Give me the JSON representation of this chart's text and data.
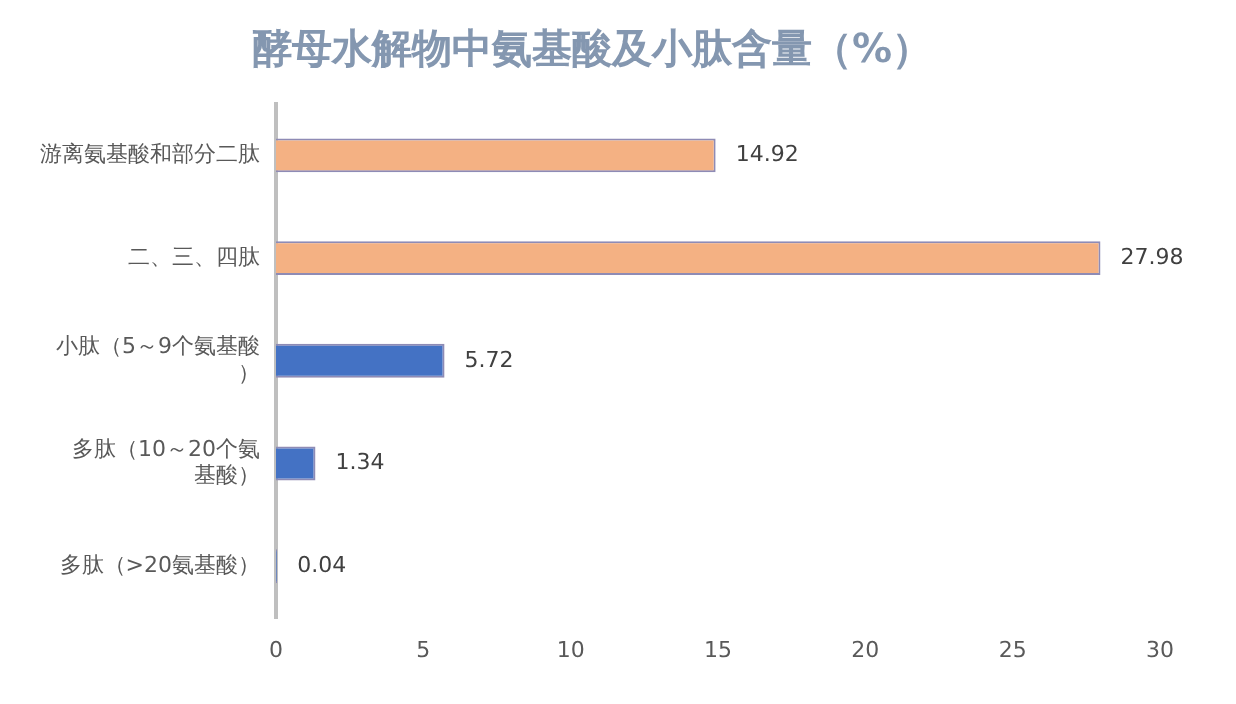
{
  "chart_data": {
    "type": "bar",
    "orientation": "horizontal",
    "title": "酵母水解物中氨基酸及小肽含量（%）",
    "categories": [
      "游离氨基酸和部分二肽",
      "二、三、四肽",
      "小肽（5～9个氨基酸）",
      "多肽（10～20个氨基酸）",
      "多肽（>20氨基酸）"
    ],
    "values": [
      14.92,
      27.98,
      5.72,
      1.34,
      0.04
    ],
    "colors": [
      "#f4b183",
      "#f4b183",
      "#4472c4",
      "#4472c4",
      "#4472c4"
    ],
    "xlim": [
      0,
      30
    ],
    "xticks": [
      0,
      5,
      10,
      15,
      20,
      25,
      30
    ],
    "grid": false,
    "legend": false,
    "data_labels": true
  }
}
